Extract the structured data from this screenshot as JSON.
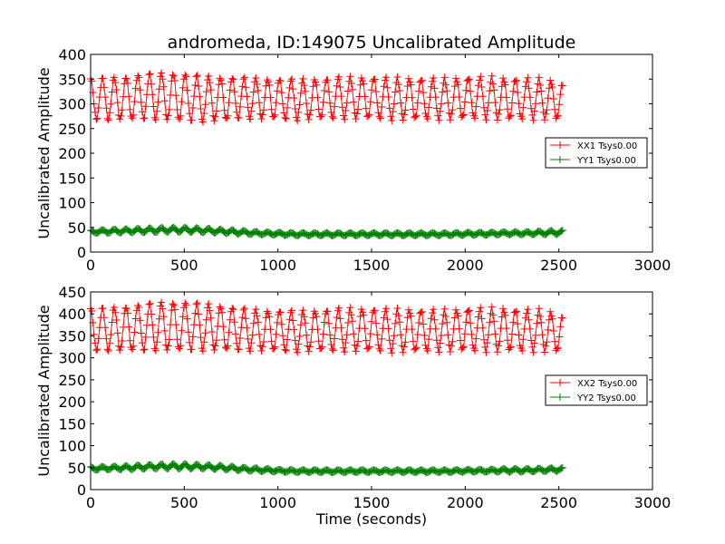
{
  "chart_data": [
    {
      "type": "line",
      "title": "andromeda, ID:149075 Uncalibrated Amplitude",
      "xlabel": "",
      "ylabel": "Uncalibrated Amplitude",
      "xlim": [
        0,
        3000
      ],
      "ylim": [
        0,
        400
      ],
      "xticks": [
        0,
        500,
        1000,
        1500,
        2000,
        2500,
        3000
      ],
      "yticks": [
        0,
        50,
        100,
        150,
        200,
        250,
        300,
        350,
        400
      ],
      "grid": false,
      "legend_position": "center-right",
      "marker": "plus",
      "series": [
        {
          "name": "XX1 Tsys0.00",
          "color": "#ff0000",
          "x_range": [
            0,
            2520
          ],
          "period_s": 63,
          "center": [
            310,
            310,
            312,
            315,
            315,
            313,
            310,
            310,
            312,
            310,
            310,
            308,
            310,
            312,
            312,
            312,
            310,
            310,
            310,
            310,
            312,
            312,
            310,
            310,
            310,
            305
          ],
          "amplitude": [
            45,
            47,
            48,
            50,
            52,
            52,
            50,
            48,
            45,
            44,
            44,
            44,
            44,
            45,
            45,
            45,
            45,
            45,
            44,
            44,
            45,
            45,
            45,
            44,
            43,
            40
          ]
        },
        {
          "name": "YY1 Tsys0.00",
          "color": "#008000",
          "x_range": [
            0,
            2520
          ],
          "period_s": 63,
          "center": [
            41,
            42,
            43,
            44,
            45,
            45,
            44,
            42,
            40,
            38,
            37,
            36,
            36,
            36,
            36,
            36,
            36,
            36,
            36,
            36,
            37,
            37,
            38,
            38,
            39,
            40
          ],
          "amplitude": [
            3,
            4,
            4,
            5,
            5,
            5,
            5,
            4,
            4,
            3,
            3,
            3,
            3,
            3,
            3,
            3,
            3,
            3,
            3,
            3,
            3,
            3,
            3,
            3,
            4,
            4
          ]
        }
      ]
    },
    {
      "type": "line",
      "title": "",
      "xlabel": "Time (seconds)",
      "ylabel": "Uncalibrated Amplitude",
      "xlim": [
        0,
        3000
      ],
      "ylim": [
        0,
        450
      ],
      "xticks": [
        0,
        500,
        1000,
        1500,
        2000,
        2500,
        3000
      ],
      "yticks": [
        0,
        50,
        100,
        150,
        200,
        250,
        300,
        350,
        400,
        450
      ],
      "grid": false,
      "legend_position": "center-right",
      "marker": "plus",
      "series": [
        {
          "name": "XX2 Tsys0.00",
          "color": "#ff0000",
          "x_range": [
            0,
            2520
          ],
          "period_s": 63,
          "center": [
            365,
            365,
            367,
            370,
            372,
            372,
            370,
            368,
            365,
            362,
            362,
            360,
            362,
            364,
            364,
            364,
            362,
            362,
            362,
            362,
            364,
            364,
            364,
            362,
            362,
            355
          ],
          "amplitude": [
            52,
            54,
            56,
            58,
            60,
            60,
            58,
            55,
            52,
            50,
            50,
            50,
            50,
            52,
            52,
            52,
            52,
            52,
            50,
            50,
            52,
            52,
            52,
            50,
            50,
            45
          ]
        },
        {
          "name": "YY2 Tsys0.00",
          "color": "#008000",
          "x_range": [
            0,
            2520
          ],
          "period_s": 63,
          "center": [
            48,
            49,
            50,
            52,
            53,
            53,
            52,
            50,
            47,
            45,
            43,
            42,
            42,
            42,
            42,
            42,
            42,
            42,
            42,
            42,
            43,
            43,
            44,
            44,
            45,
            46
          ],
          "amplitude": [
            4,
            4,
            5,
            5,
            6,
            6,
            5,
            5,
            4,
            4,
            3,
            3,
            3,
            3,
            3,
            3,
            3,
            3,
            3,
            3,
            3,
            3,
            4,
            4,
            4,
            4
          ]
        }
      ]
    }
  ]
}
